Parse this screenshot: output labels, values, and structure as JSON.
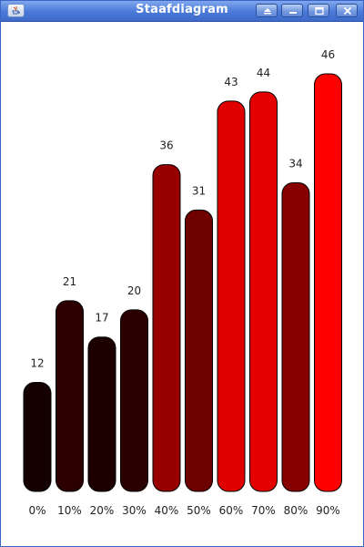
{
  "window": {
    "title": "Staafdiagram",
    "icons": [
      "java-app-icon",
      "shade-icon",
      "minimize-icon",
      "maximize-icon",
      "close-icon"
    ]
  },
  "chart_data": {
    "type": "bar",
    "title": "",
    "xlabel": "",
    "ylabel": "",
    "categories": [
      "0%",
      "10%",
      "20%",
      "30%",
      "40%",
      "50%",
      "60%",
      "70%",
      "80%",
      "90%"
    ],
    "values": [
      12,
      21,
      17,
      20,
      36,
      31,
      43,
      44,
      34,
      46
    ],
    "colors": [
      "#140000",
      "#2c0000",
      "#1c0000",
      "#2a0000",
      "#980000",
      "#6e0000",
      "#e00000",
      "#e40000",
      "#880000",
      "#ff0000"
    ],
    "ylim": [
      0,
      46
    ],
    "grid": false,
    "legend": "none"
  }
}
